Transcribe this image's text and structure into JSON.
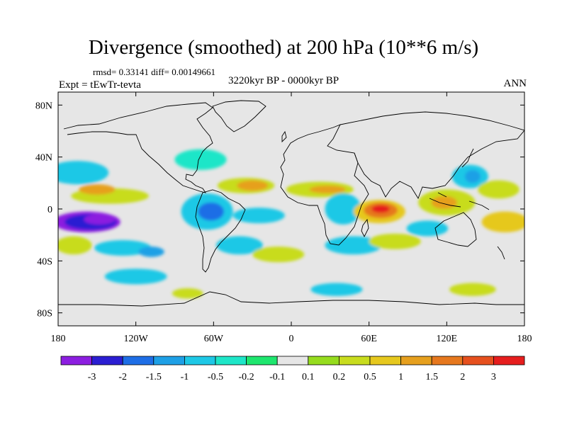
{
  "title": "Divergence (smoothed) at 200 hPa (10**6 m/s)",
  "stats": "rmsd= 0.33141 diff= 0.00149661",
  "experiment": "Expt = tEwTr-tevta",
  "period": "3220kyr BP - 0000kyr BP",
  "season": "ANN",
  "map": {
    "lon_ticks": [
      {
        "lon": -180,
        "label": "180"
      },
      {
        "lon": -120,
        "label": "120W"
      },
      {
        "lon": -60,
        "label": "60W"
      },
      {
        "lon": 0,
        "label": "0"
      },
      {
        "lon": 60,
        "label": "60E"
      },
      {
        "lon": 120,
        "label": "120E"
      },
      {
        "lon": 180,
        "label": "180"
      }
    ],
    "lat_ticks": [
      {
        "lat": 80,
        "label": "80N"
      },
      {
        "lat": 40,
        "label": "40N"
      },
      {
        "lat": 0,
        "label": "0"
      },
      {
        "lat": -40,
        "label": "40S"
      },
      {
        "lat": -80,
        "label": "80S"
      }
    ],
    "background_color": "#e6e6e6",
    "anomalies": [
      {
        "lon": -158,
        "lat": -10,
        "rx": 26,
        "ry": 8,
        "cls": 0
      },
      {
        "lon": -155,
        "lat": -10,
        "rx": 20,
        "ry": 6,
        "cls": 1
      },
      {
        "lon": -148,
        "lat": -8,
        "rx": 12,
        "ry": 4,
        "cls": 0
      },
      {
        "lon": -165,
        "lat": 28,
        "rx": 24,
        "ry": 9,
        "cls": 4
      },
      {
        "lon": -140,
        "lat": 10,
        "rx": 30,
        "ry": 6,
        "cls": 9
      },
      {
        "lon": -150,
        "lat": 15,
        "rx": 14,
        "ry": 4,
        "cls": 11
      },
      {
        "lon": -168,
        "lat": -28,
        "rx": 14,
        "ry": 7,
        "cls": 9
      },
      {
        "lon": -130,
        "lat": -30,
        "rx": 22,
        "ry": 6,
        "cls": 4
      },
      {
        "lon": -108,
        "lat": -33,
        "rx": 10,
        "ry": 4,
        "cls": 3
      },
      {
        "lon": -120,
        "lat": -52,
        "rx": 24,
        "ry": 6,
        "cls": 4
      },
      {
        "lon": -65,
        "lat": -2,
        "rx": 20,
        "ry": 14,
        "cls": 4
      },
      {
        "lon": -62,
        "lat": -2,
        "rx": 10,
        "ry": 7,
        "cls": 2
      },
      {
        "lon": -70,
        "lat": 38,
        "rx": 20,
        "ry": 8,
        "cls": 5
      },
      {
        "lon": -35,
        "lat": 18,
        "rx": 22,
        "ry": 6,
        "cls": 9
      },
      {
        "lon": -30,
        "lat": 18,
        "rx": 12,
        "ry": 4,
        "cls": 11
      },
      {
        "lon": -25,
        "lat": -5,
        "rx": 20,
        "ry": 6,
        "cls": 4
      },
      {
        "lon": -40,
        "lat": -28,
        "rx": 18,
        "ry": 7,
        "cls": 4
      },
      {
        "lon": -10,
        "lat": -35,
        "rx": 20,
        "ry": 6,
        "cls": 9
      },
      {
        "lon": 22,
        "lat": 15,
        "rx": 26,
        "ry": 6,
        "cls": 9
      },
      {
        "lon": 28,
        "lat": 15,
        "rx": 14,
        "ry": 3,
        "cls": 11
      },
      {
        "lon": 40,
        "lat": 0,
        "rx": 14,
        "ry": 12,
        "cls": 4
      },
      {
        "lon": 68,
        "lat": -2,
        "rx": 20,
        "ry": 9,
        "cls": 10
      },
      {
        "lon": 69,
        "lat": -1,
        "rx": 13,
        "ry": 6,
        "cls": 12
      },
      {
        "lon": 69,
        "lat": 0,
        "rx": 7,
        "ry": 3,
        "cls": 14
      },
      {
        "lon": 48,
        "lat": -28,
        "rx": 22,
        "ry": 7,
        "cls": 4
      },
      {
        "lon": 80,
        "lat": -25,
        "rx": 20,
        "ry": 6,
        "cls": 9
      },
      {
        "lon": 105,
        "lat": -15,
        "rx": 16,
        "ry": 6,
        "cls": 4
      },
      {
        "lon": 120,
        "lat": 5,
        "rx": 22,
        "ry": 10,
        "cls": 9
      },
      {
        "lon": 118,
        "lat": 5,
        "rx": 10,
        "ry": 5,
        "cls": 11
      },
      {
        "lon": 138,
        "lat": 25,
        "rx": 14,
        "ry": 9,
        "cls": 4
      },
      {
        "lon": 140,
        "lat": 25,
        "rx": 6,
        "ry": 5,
        "cls": 3
      },
      {
        "lon": 165,
        "lat": -10,
        "rx": 18,
        "ry": 8,
        "cls": 10
      },
      {
        "lon": 160,
        "lat": 15,
        "rx": 16,
        "ry": 7,
        "cls": 9
      },
      {
        "lon": 35,
        "lat": -62,
        "rx": 20,
        "ry": 5,
        "cls": 4
      },
      {
        "lon": 140,
        "lat": -62,
        "rx": 18,
        "ry": 5,
        "cls": 9
      },
      {
        "lon": -80,
        "lat": -65,
        "rx": 12,
        "ry": 4,
        "cls": 9
      }
    ]
  },
  "colorbar": {
    "colors": [
      "#8c1ee0",
      "#2b1ed2",
      "#1e6ee6",
      "#1ea0e6",
      "#1ec8e6",
      "#1ee6c8",
      "#1ee66e",
      "#e6e6e6",
      "#96dc1e",
      "#c8dc1e",
      "#e6c81e",
      "#e6a01e",
      "#e6781e",
      "#e6501e",
      "#e61e1e"
    ],
    "labels": [
      "-3",
      "-2",
      "-1.5",
      "-1",
      "-0.5",
      "-0.2",
      "-0.1",
      "0.1",
      "0.2",
      "0.5",
      "1",
      "1.5",
      "2",
      "3"
    ]
  }
}
